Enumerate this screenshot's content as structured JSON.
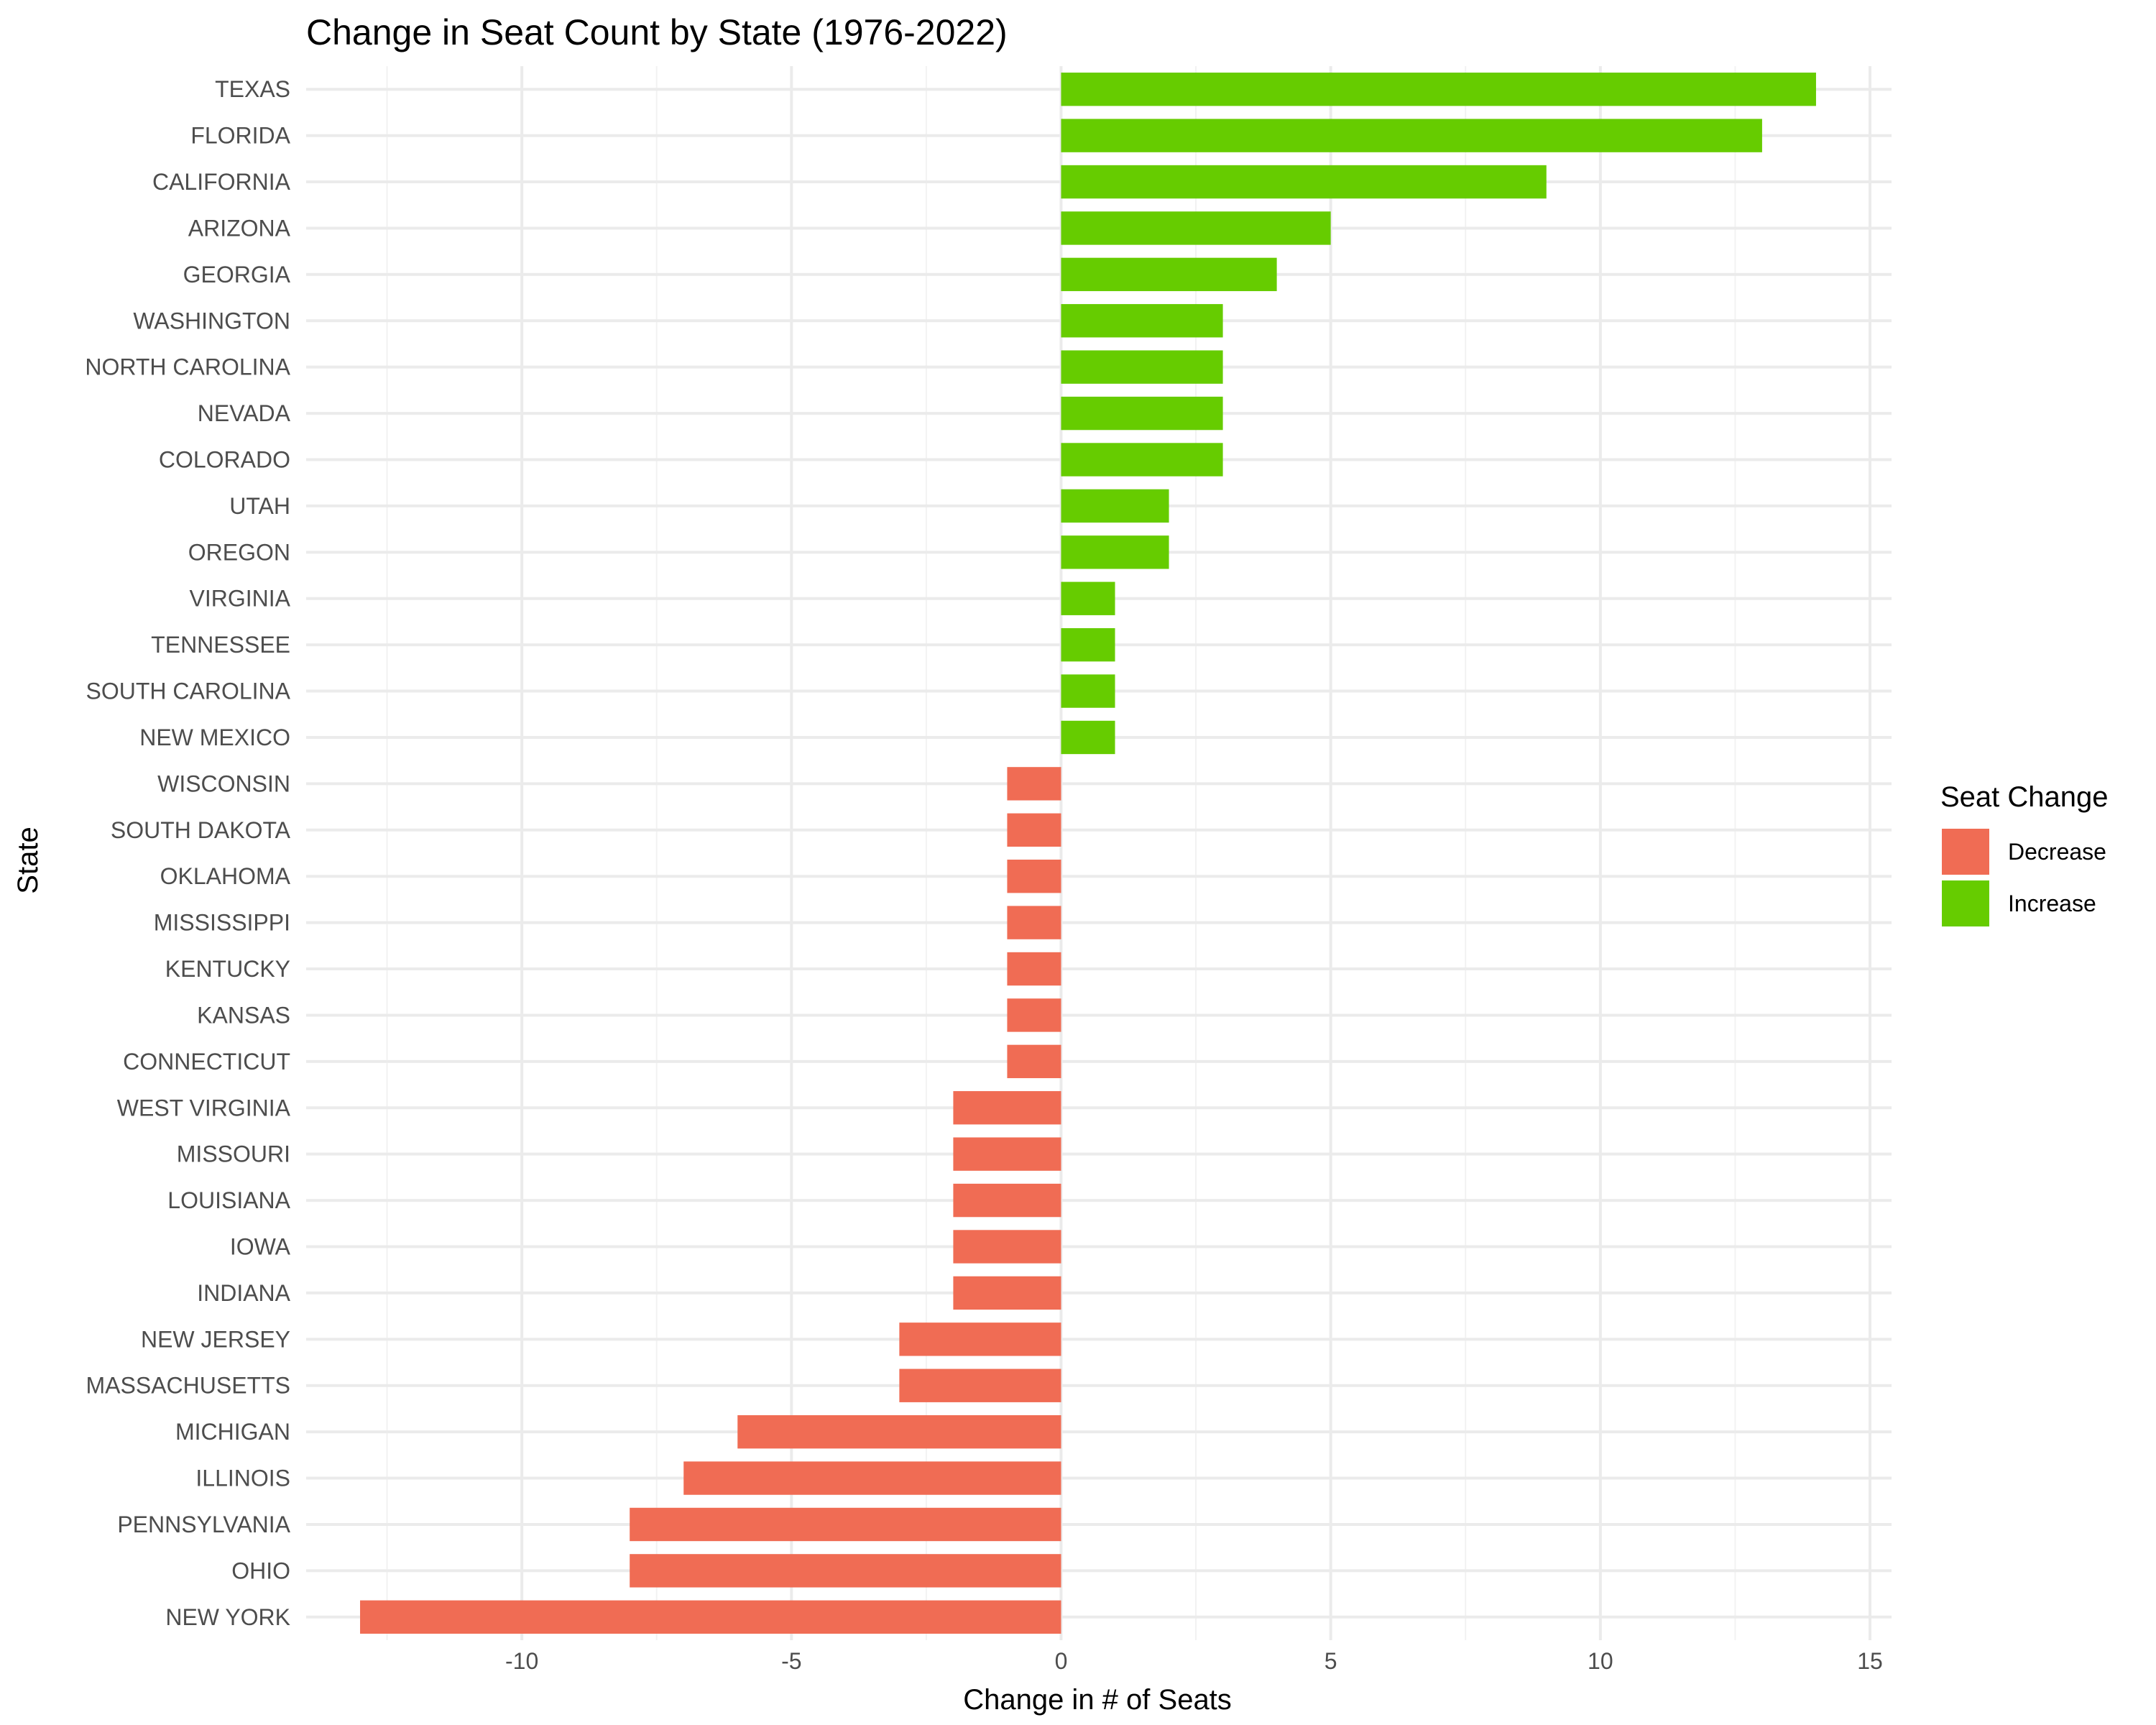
{
  "chart_data": {
    "type": "bar",
    "orientation": "horizontal",
    "title": "Change in Seat Count by State (1976-2022)",
    "xlabel": "Change in # of Seats",
    "ylabel": "State",
    "xlim": [
      -14,
      15.4
    ],
    "x_ticks": [
      -10,
      -5,
      0,
      5,
      10,
      15
    ],
    "x_tick_labels": [
      "-10",
      "-5",
      "0",
      "5",
      "10",
      "15"
    ],
    "grid": true,
    "legend": {
      "title": "Seat Change",
      "placement": "right",
      "entries": [
        {
          "label": "Decrease",
          "color": "#f06c54"
        },
        {
          "label": "Increase",
          "color": "#66cc00"
        }
      ]
    },
    "categories": [
      "TEXAS",
      "FLORIDA",
      "CALIFORNIA",
      "ARIZONA",
      "GEORGIA",
      "WASHINGTON",
      "NORTH CAROLINA",
      "NEVADA",
      "COLORADO",
      "UTAH",
      "OREGON",
      "VIRGINIA",
      "TENNESSEE",
      "SOUTH CAROLINA",
      "NEW MEXICO",
      "WISCONSIN",
      "SOUTH DAKOTA",
      "OKLAHOMA",
      "MISSISSIPPI",
      "KENTUCKY",
      "KANSAS",
      "CONNECTICUT",
      "WEST VIRGINIA",
      "MISSOURI",
      "LOUISIANA",
      "IOWA",
      "INDIANA",
      "NEW JERSEY",
      "MASSACHUSETTS",
      "MICHIGAN",
      "ILLINOIS",
      "PENNSYLVANIA",
      "OHIO",
      "NEW YORK"
    ],
    "values": [
      14,
      13,
      9,
      5,
      4,
      3,
      3,
      3,
      3,
      2,
      2,
      1,
      1,
      1,
      1,
      -1,
      -1,
      -1,
      -1,
      -1,
      -1,
      -1,
      -2,
      -2,
      -2,
      -2,
      -2,
      -3,
      -3,
      -6,
      -7,
      -8,
      -8,
      -13
    ]
  }
}
